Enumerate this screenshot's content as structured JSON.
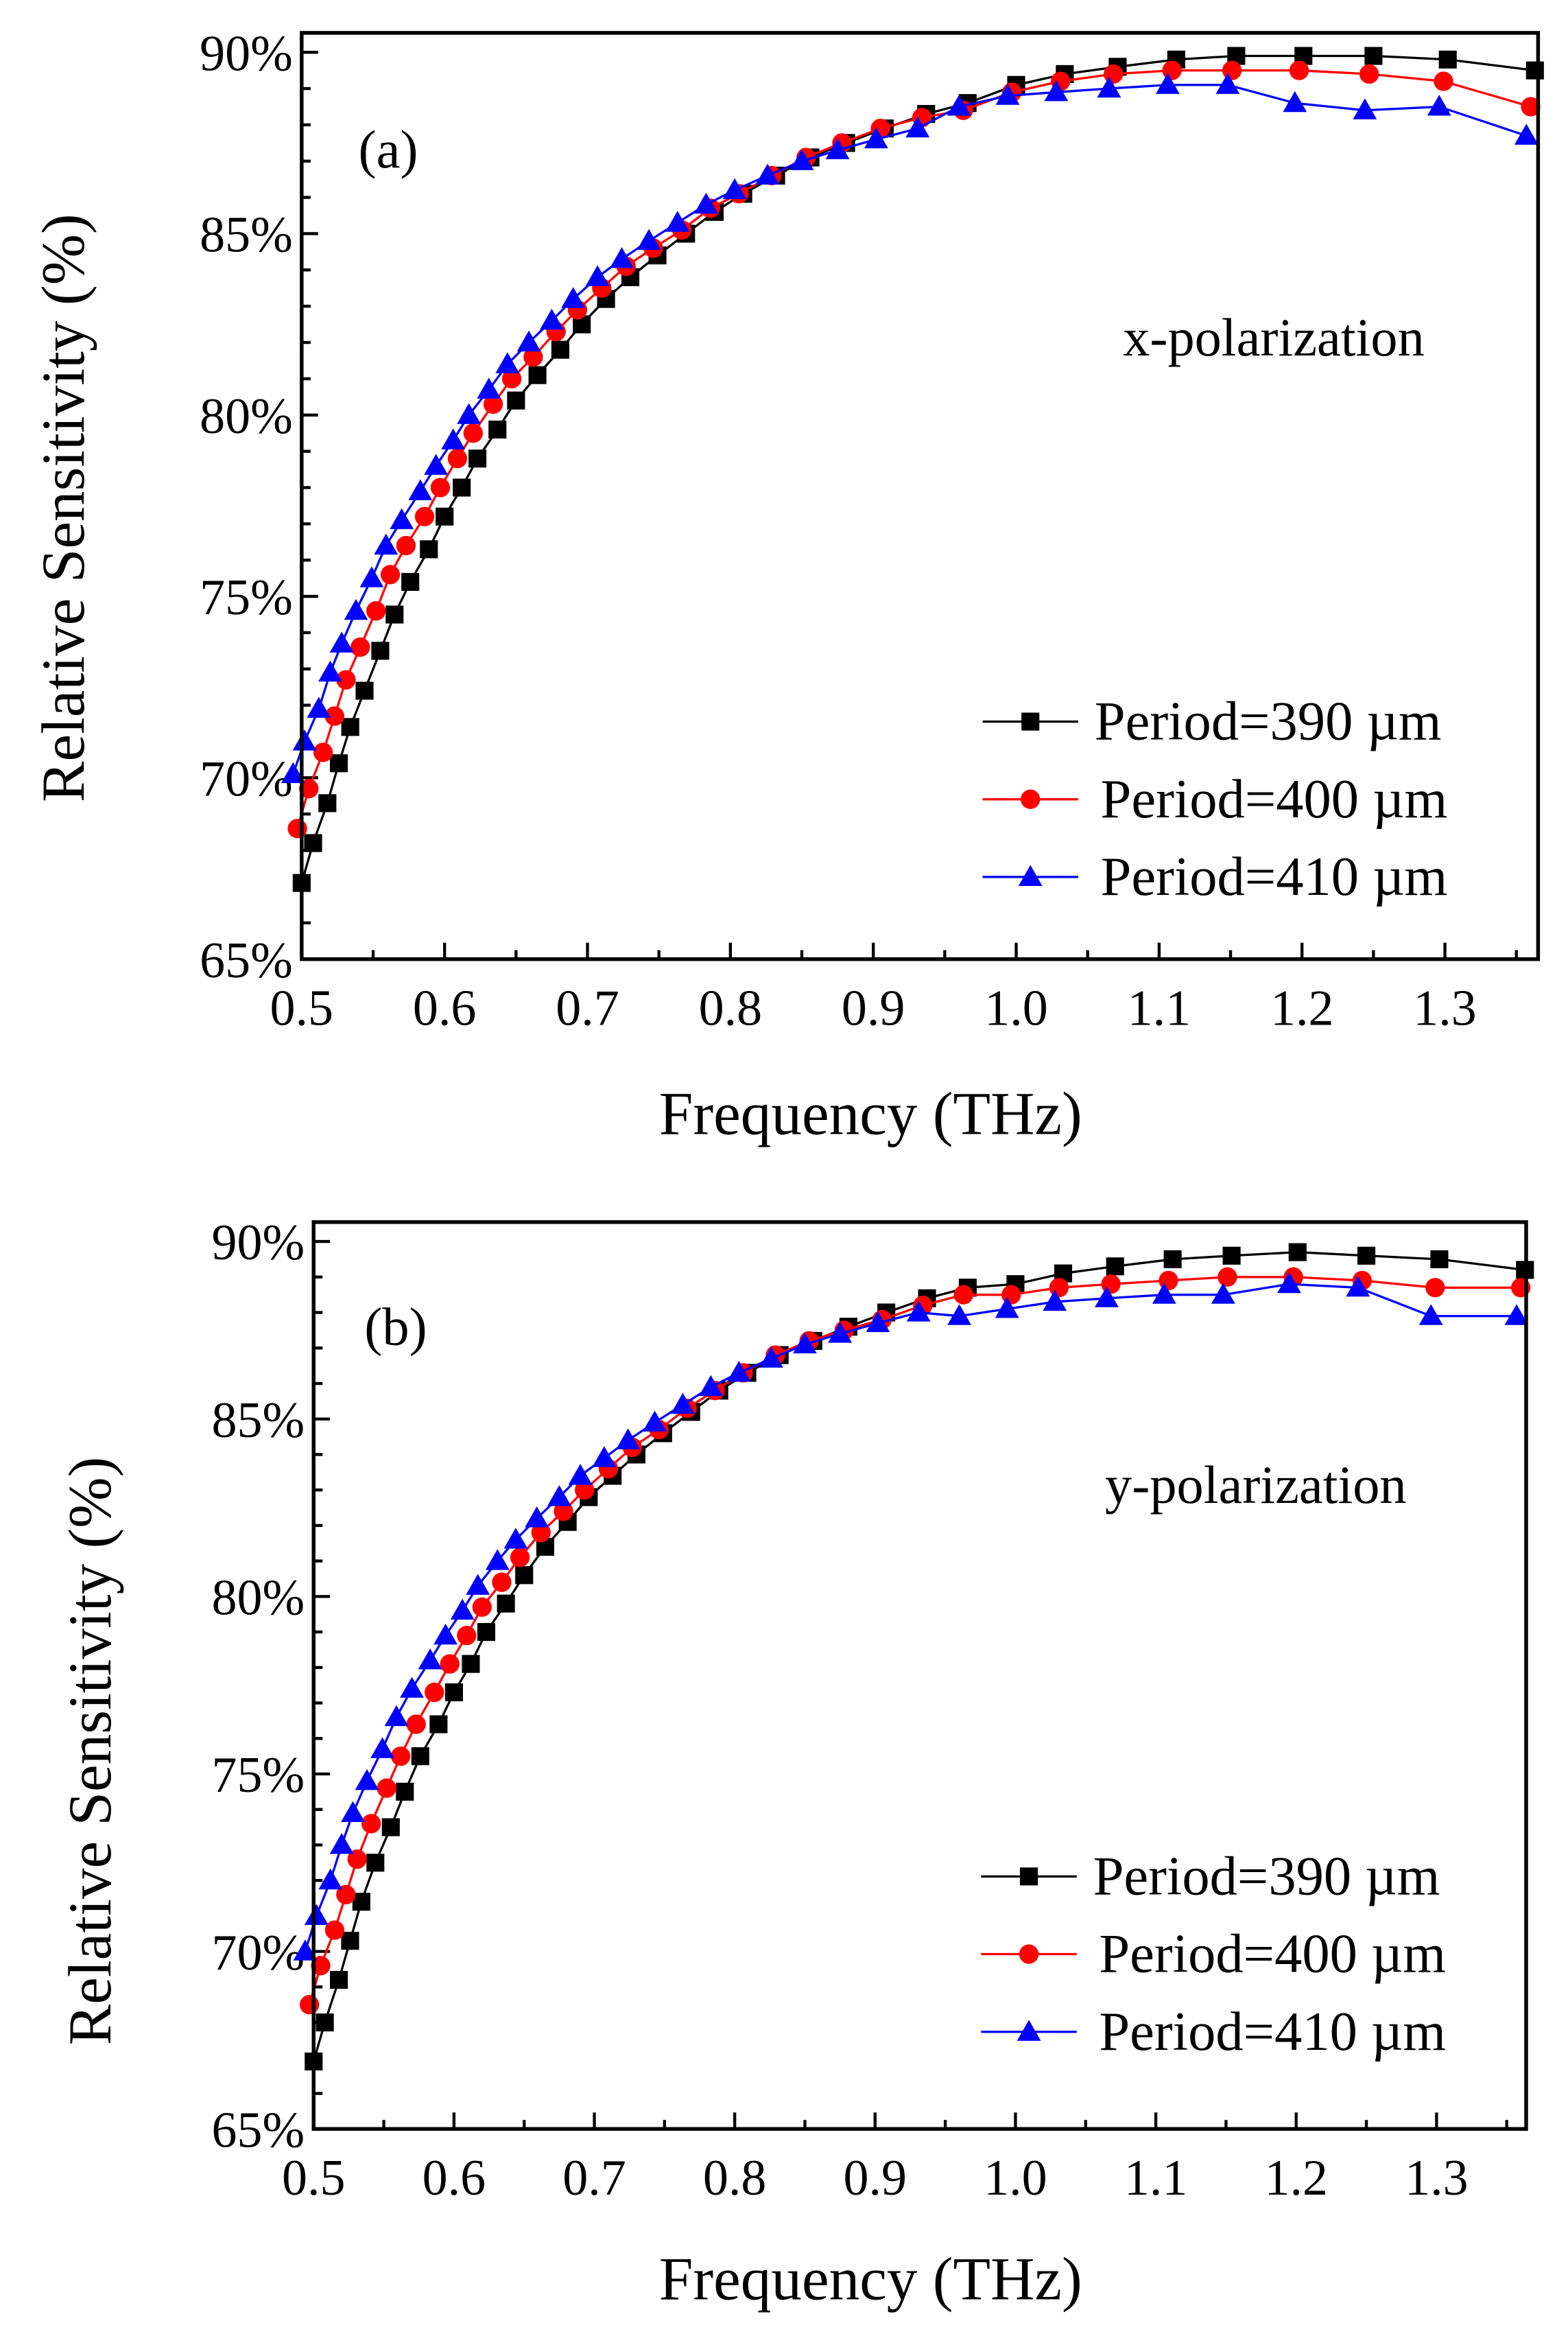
{
  "chart_data": [
    {
      "type": "line",
      "panel_label": "(a)",
      "annotation": "x-polarization",
      "xlabel": "Frequency (THz)",
      "ylabel": "Relative Sensitivity (%)",
      "xlim": [
        0.5,
        1.365
      ],
      "ylim": [
        65,
        90
      ],
      "xticks": [
        "0.5",
        "0.6",
        "0.7",
        "0.8",
        "0.9",
        "1.0",
        "1.1",
        "1.2",
        "1.3"
      ],
      "yticks": [
        "65%",
        "70%",
        "75%",
        "80%",
        "85%",
        "90%"
      ],
      "legend_position": "bottom-right",
      "x": [
        0.5,
        0.508,
        0.518,
        0.526,
        0.534,
        0.544,
        0.555,
        0.565,
        0.576,
        0.589,
        0.6,
        0.612,
        0.623,
        0.637,
        0.65,
        0.665,
        0.681,
        0.696,
        0.713,
        0.73,
        0.749,
        0.769,
        0.789,
        0.809,
        0.832,
        0.856,
        0.881,
        0.908,
        0.937,
        0.966,
        1.0,
        1.034,
        1.071,
        1.112,
        1.154,
        1.201,
        1.25,
        1.302,
        1.363
      ],
      "series": [
        {
          "name": "Period=390 µm",
          "color": "#000000",
          "marker": "square",
          "values": [
            67.1,
            68.2,
            69.3,
            70.4,
            71.4,
            72.4,
            73.5,
            74.5,
            75.4,
            76.3,
            77.2,
            78.0,
            78.8,
            79.6,
            80.4,
            81.1,
            81.8,
            82.5,
            83.2,
            83.8,
            84.4,
            85.0,
            85.6,
            86.1,
            86.6,
            87.1,
            87.5,
            87.9,
            88.3,
            88.6,
            89.1,
            89.4,
            89.6,
            89.8,
            89.9,
            89.9,
            89.9,
            89.8,
            89.5
          ]
        },
        {
          "name": "Period=400 µm",
          "color": "#ff0000",
          "marker": "circle",
          "values": [
            68.6,
            69.7,
            70.7,
            71.7,
            72.7,
            73.6,
            74.6,
            75.6,
            76.4,
            77.2,
            78.0,
            78.8,
            79.5,
            80.3,
            81.0,
            81.6,
            82.3,
            82.9,
            83.5,
            84.1,
            84.6,
            85.1,
            85.7,
            86.1,
            86.6,
            87.1,
            87.5,
            87.9,
            88.2,
            88.4,
            88.9,
            89.2,
            89.4,
            89.5,
            89.5,
            89.5,
            89.4,
            89.2,
            88.5
          ]
        },
        {
          "name": "Period=410 µm",
          "color": "#0000ff",
          "marker": "triangle",
          "values": [
            70.1,
            71.0,
            71.9,
            72.9,
            73.7,
            74.6,
            75.5,
            76.4,
            77.1,
            77.9,
            78.6,
            79.3,
            80.0,
            80.7,
            81.4,
            82.0,
            82.6,
            83.2,
            83.8,
            84.3,
            84.8,
            85.3,
            85.8,
            86.2,
            86.6,
            87.0,
            87.3,
            87.6,
            87.9,
            88.5,
            88.8,
            88.9,
            89.0,
            89.1,
            89.1,
            88.6,
            88.4,
            88.5,
            87.7
          ]
        }
      ]
    },
    {
      "type": "line",
      "panel_label": "(b)",
      "annotation": "y-polarization",
      "xlabel": "Frequency (THz)",
      "ylabel": "Relative Sensitivity (%)",
      "xlim": [
        0.5,
        1.365
      ],
      "ylim": [
        65,
        90
      ],
      "xticks": [
        "0.5",
        "0.6",
        "0.7",
        "0.8",
        "0.9",
        "1.0",
        "1.1",
        "1.2",
        "1.3"
      ],
      "yticks": [
        "65%",
        "70%",
        "75%",
        "80%",
        "85%",
        "90%"
      ],
      "legend_position": "bottom-right",
      "x": [
        0.5,
        0.508,
        0.518,
        0.526,
        0.534,
        0.544,
        0.555,
        0.565,
        0.576,
        0.589,
        0.6,
        0.612,
        0.623,
        0.637,
        0.65,
        0.665,
        0.681,
        0.696,
        0.713,
        0.73,
        0.749,
        0.769,
        0.789,
        0.809,
        0.832,
        0.856,
        0.881,
        0.908,
        0.937,
        0.966,
        1.0,
        1.034,
        1.071,
        1.112,
        1.154,
        1.201,
        1.25,
        1.302,
        1.363
      ],
      "series": [
        {
          "name": "Period=390 µm",
          "color": "#000000",
          "marker": "square",
          "values": [
            66.9,
            68.0,
            69.2,
            70.3,
            71.4,
            72.5,
            73.5,
            74.5,
            75.5,
            76.4,
            77.3,
            78.1,
            79.0,
            79.8,
            80.6,
            81.4,
            82.1,
            82.8,
            83.4,
            84.0,
            84.6,
            85.2,
            85.8,
            86.3,
            86.8,
            87.2,
            87.6,
            88.0,
            88.4,
            88.7,
            88.8,
            89.1,
            89.3,
            89.5,
            89.6,
            89.7,
            89.6,
            89.5,
            89.2
          ]
        },
        {
          "name": "Period=400 µm",
          "color": "#ff0000",
          "marker": "circle",
          "values": [
            68.5,
            69.6,
            70.6,
            71.6,
            72.6,
            73.6,
            74.6,
            75.5,
            76.4,
            77.3,
            78.1,
            78.9,
            79.7,
            80.4,
            81.1,
            81.8,
            82.4,
            83.0,
            83.6,
            84.2,
            84.7,
            85.3,
            85.8,
            86.3,
            86.8,
            87.2,
            87.5,
            87.8,
            88.2,
            88.5,
            88.5,
            88.7,
            88.8,
            88.9,
            89.0,
            89.0,
            88.9,
            88.7,
            88.7
          ]
        },
        {
          "name": "Period=410 µm",
          "color": "#0000ff",
          "marker": "triangle",
          "values": [
            70.0,
            71.0,
            72.0,
            73.0,
            73.9,
            74.8,
            75.7,
            76.6,
            77.4,
            78.2,
            78.9,
            79.6,
            80.3,
            81.0,
            81.6,
            82.2,
            82.8,
            83.4,
            83.9,
            84.4,
            84.9,
            85.4,
            85.9,
            86.3,
            86.7,
            87.1,
            87.4,
            87.7,
            88.0,
            87.9,
            88.1,
            88.3,
            88.4,
            88.5,
            88.5,
            88.8,
            88.7,
            87.9,
            87.9
          ]
        }
      ]
    }
  ]
}
